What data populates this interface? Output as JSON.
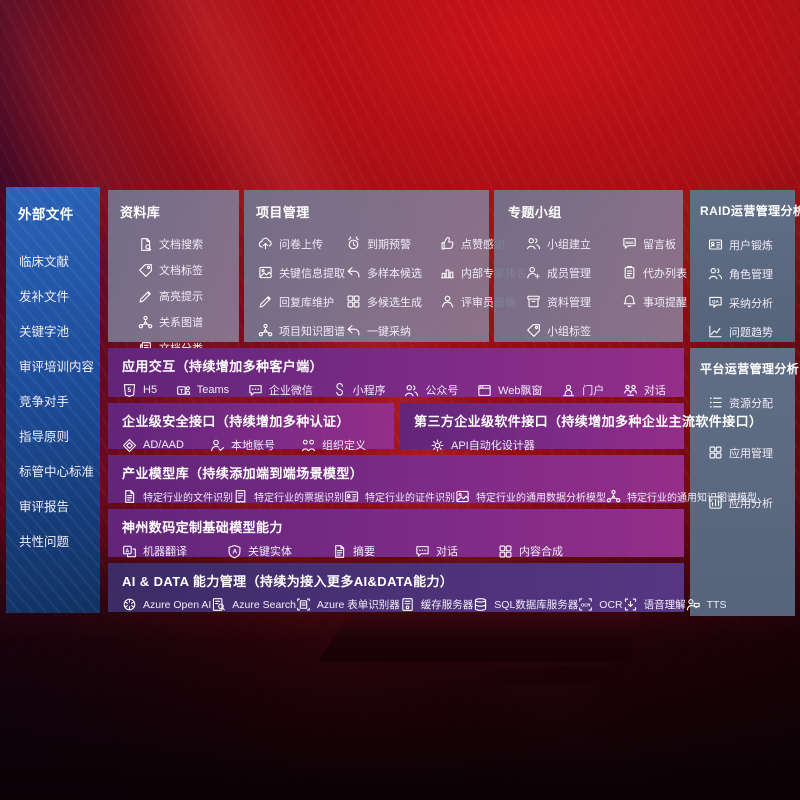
{
  "colors": {
    "background_red": "#a80f15",
    "sidebar_blue": "#1d4d9a",
    "panel_gray": "#79778f",
    "panel_slate": "#5b6980",
    "row_purple": "#7c2b86",
    "row_indigo": "#4e327a",
    "text": "#ffffff"
  },
  "sidebar": {
    "title": "外部文件",
    "items": [
      {
        "label": "临床文献"
      },
      {
        "label": "发补文件"
      },
      {
        "label": "关键字池"
      },
      {
        "label": "审评培训内容"
      },
      {
        "label": "竞争对手"
      },
      {
        "label": "指导原则"
      },
      {
        "label": "标管中心标准"
      },
      {
        "label": "审评报告"
      },
      {
        "label": "共性问题"
      }
    ]
  },
  "panels": {
    "repo": {
      "title": "资料库",
      "items": [
        {
          "label": "文档搜索",
          "icon": "doc-search"
        },
        {
          "label": "文档标签",
          "icon": "tag"
        },
        {
          "label": "高亮提示",
          "icon": "pen"
        },
        {
          "label": "关系图谱",
          "icon": "network"
        },
        {
          "label": "文档分类",
          "icon": "doc-copy"
        }
      ]
    },
    "project": {
      "title": "项目管理",
      "items": [
        {
          "label": "问卷上传",
          "icon": "cloud-upload"
        },
        {
          "label": "到期预警",
          "icon": "alarm"
        },
        {
          "label": "点赞感谢",
          "icon": "thumbs-up"
        },
        {
          "label": "关键信息提取",
          "icon": "image"
        },
        {
          "label": "多样本候选",
          "icon": "reply"
        },
        {
          "label": "内部专家排名",
          "icon": "podium"
        },
        {
          "label": "回复库维护",
          "icon": "pen"
        },
        {
          "label": "多候选生成",
          "icon": "grid"
        },
        {
          "label": "评审员画像",
          "icon": "person"
        },
        {
          "label": "项目知识图谱",
          "icon": "network"
        },
        {
          "label": "一键采纳",
          "icon": "reply"
        }
      ]
    },
    "group": {
      "title": "专题小组",
      "items": [
        {
          "label": "小组建立",
          "icon": "people"
        },
        {
          "label": "留言板",
          "icon": "chat-bbs"
        },
        {
          "label": "成员管理",
          "icon": "person-plus"
        },
        {
          "label": "代办列表",
          "icon": "clipboard"
        },
        {
          "label": "资料管理",
          "icon": "archive"
        },
        {
          "label": "事项提醒",
          "icon": "bell"
        },
        {
          "label": "小组标签",
          "icon": "tag"
        }
      ]
    },
    "raid": {
      "title": "RAID运营管理分析",
      "items": [
        {
          "label": "用户锻炼",
          "icon": "idcard"
        },
        {
          "label": "角色管理",
          "icon": "people"
        },
        {
          "label": "采纳分析",
          "icon": "chat-qa"
        },
        {
          "label": "问题趋势",
          "icon": "chart"
        }
      ]
    },
    "platform": {
      "title": "平台运营管理分析",
      "items": [
        {
          "label": "资源分配",
          "icon": "list"
        },
        {
          "label": "应用管理",
          "icon": "grid"
        },
        {
          "label": "应用分析",
          "icon": "chart-box"
        }
      ]
    },
    "interact": {
      "title": "应用交互（持续增加多种客户端）",
      "items": [
        {
          "label": "H5",
          "icon": "h5"
        },
        {
          "label": "Teams",
          "icon": "teams"
        },
        {
          "label": "企业微信",
          "icon": "chat"
        },
        {
          "label": "小程序",
          "icon": "miniprogram"
        },
        {
          "label": "公众号",
          "icon": "people"
        },
        {
          "label": "Web飘窗",
          "icon": "window"
        },
        {
          "label": "门户",
          "icon": "portal"
        },
        {
          "label": "对话",
          "icon": "dialog"
        }
      ]
    },
    "security": {
      "title": "企业级安全接口（持续增加多种认证）",
      "items": [
        {
          "label": "AD/AAD",
          "icon": "ad"
        },
        {
          "label": "本地账号",
          "icon": "user-check"
        },
        {
          "label": "组织定义",
          "icon": "org"
        }
      ]
    },
    "thirdparty": {
      "title": "第三方企业级软件接口（持续增加多种企业主流软件接口）",
      "items": [
        {
          "label": "API自动化设计器",
          "icon": "gear"
        }
      ]
    },
    "industry": {
      "title": "产业模型库（持续添加端到端场景模型）",
      "items": [
        {
          "label": "特定行业的文件识别",
          "icon": "doc"
        },
        {
          "label": "特定行业的票据识别",
          "icon": "receipt"
        },
        {
          "label": "特定行业的证件识别",
          "icon": "idcard"
        },
        {
          "label": "特定行业的通用数据分析模型",
          "icon": "image"
        },
        {
          "label": "特定行业的通用知识图谱模型",
          "icon": "network"
        }
      ]
    },
    "shenzhou": {
      "title": "神州数码定制基础模型能力",
      "items": [
        {
          "label": "机器翻译",
          "icon": "translate"
        },
        {
          "label": "关键实体",
          "icon": "shield-a"
        },
        {
          "label": "摘要",
          "icon": "doc"
        },
        {
          "label": "对话",
          "icon": "chat"
        },
        {
          "label": "内容合成",
          "icon": "grid"
        }
      ]
    },
    "aidata": {
      "title": "AI & DATA 能力管理（持续为接入更多AI&DATA能力）",
      "items": [
        {
          "label": "Azure Open AI",
          "icon": "openai"
        },
        {
          "label": "Azure Search",
          "icon": "search-doc"
        },
        {
          "label": "Azure 表单识别器",
          "icon": "form-scan"
        },
        {
          "label": "缓存服务器",
          "icon": "server"
        },
        {
          "label": "SQL数据库服务器",
          "icon": "db"
        },
        {
          "label": "OCR",
          "icon": "ocr"
        },
        {
          "label": "语音理解",
          "icon": "voice"
        },
        {
          "label": "TTS",
          "icon": "tts"
        }
      ]
    }
  }
}
